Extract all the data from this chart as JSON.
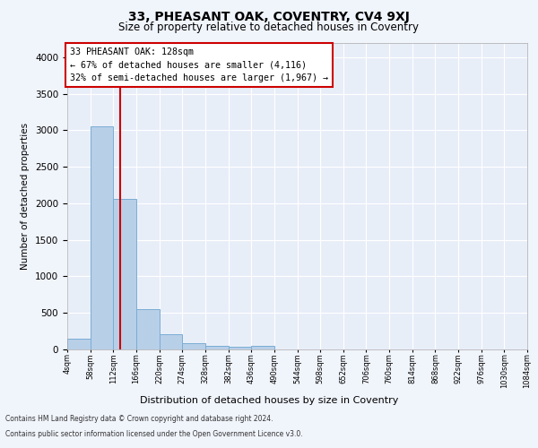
{
  "title": "33, PHEASANT OAK, COVENTRY, CV4 9XJ",
  "subtitle": "Size of property relative to detached houses in Coventry",
  "xlabel": "Distribution of detached houses by size in Coventry",
  "ylabel": "Number of detached properties",
  "bar_color": "#b8cfe8",
  "bar_edge_color": "#7aadd4",
  "fig_bg_color": "#f0f4fb",
  "plot_bg_color": "#e8eef8",
  "vline_color": "#cc0000",
  "vline_x": 128,
  "annotation_text": "33 PHEASANT OAK: 128sqm\n← 67% of detached houses are smaller (4,116)\n32% of semi-detached houses are larger (1,967) →",
  "annotation_box_color": "#ffffff",
  "annotation_box_edge": "#cc0000",
  "footer_line1": "Contains HM Land Registry data © Crown copyright and database right 2024.",
  "footer_line2": "Contains public sector information licensed under the Open Government Licence v3.0.",
  "bin_edges": [
    4,
    58,
    112,
    166,
    220,
    274,
    328,
    382,
    436,
    490,
    544,
    598,
    652,
    706,
    760,
    814,
    868,
    922,
    976,
    1030,
    1084
  ],
  "bin_labels": [
    "4sqm",
    "58sqm",
    "112sqm",
    "166sqm",
    "220sqm",
    "274sqm",
    "328sqm",
    "382sqm",
    "436sqm",
    "490sqm",
    "544sqm",
    "598sqm",
    "652sqm",
    "706sqm",
    "760sqm",
    "814sqm",
    "868sqm",
    "922sqm",
    "976sqm",
    "1030sqm",
    "1084sqm"
  ],
  "bar_heights": [
    145,
    3055,
    2060,
    555,
    205,
    80,
    55,
    35,
    45,
    0,
    0,
    0,
    0,
    0,
    0,
    0,
    0,
    0,
    0,
    0
  ],
  "ylim": [
    0,
    4200
  ],
  "yticks": [
    0,
    500,
    1000,
    1500,
    2000,
    2500,
    3000,
    3500,
    4000
  ]
}
